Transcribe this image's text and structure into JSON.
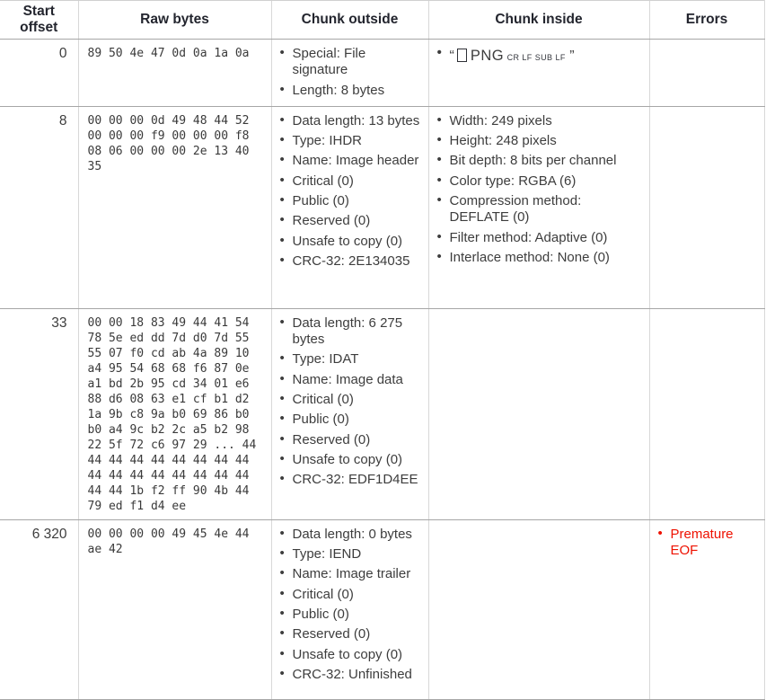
{
  "colors": {
    "error": "#ee1100",
    "header_text": "#23252e",
    "body_text": "#3d3d3d",
    "horizontal_border": "#a6a6a6",
    "vertical_border": "#d8d8d8"
  },
  "table": {
    "headers": [
      "Start offset",
      "Raw bytes",
      "Chunk outside",
      "Chunk inside",
      "Errors"
    ],
    "rows": [
      {
        "offset": "0",
        "raw_bytes": "89 50 4e 47 0d 0a 1a 0a",
        "outside": [
          "Special: File signature",
          "Length: 8 bytes"
        ],
        "inside": [],
        "inside_signature": {
          "open_quote": "“",
          "box_icon": "unprintable-byte-box",
          "text": "PNG",
          "control_chars": [
            "CR",
            "LF",
            "SUB",
            "LF"
          ],
          "close_quote": "”"
        },
        "errors": []
      },
      {
        "offset": "8",
        "raw_bytes": "00 00 00 0d 49 48 44 52\n00 00 00 f9 00 00 00 f8\n08 06 00 00 00 2e 13 40\n35",
        "outside": [
          "Data length: 13 bytes",
          "Type: IHDR",
          "Name: Image header",
          "Critical (0)",
          "Public (0)",
          "Reserved (0)",
          "Unsafe to copy (0)",
          "CRC-32: 2E134035"
        ],
        "inside": [
          "Width: 249 pixels",
          "Height: 248 pixels",
          "Bit depth: 8 bits per channel",
          "Color type: RGBA (6)",
          "Compression method: DEFLATE (0)",
          "Filter method: Adaptive (0)",
          "Interlace method: None (0)"
        ],
        "errors": []
      },
      {
        "offset": "33",
        "raw_bytes": "00 00 18 83 49 44 41 54\n78 5e ed dd 7d d0 7d 55\n55 07 f0 cd ab 4a 89 10\na4 95 54 68 68 f6 87 0e\na1 bd 2b 95 cd 34 01 e6\n88 d6 08 63 e1 cf b1 d2\n1a 9b c8 9a b0 69 86 b0\nb0 a4 9c b2 2c a5 b2 98\n22 5f 72 c6 97 29 ... 44\n44 44 44 44 44 44 44 44\n44 44 44 44 44 44 44 44\n44 44 1b f2 ff 90 4b 44\n79 ed f1 d4 ee",
        "outside": [
          "Data length: 6 275 bytes",
          "Type: IDAT",
          "Name: Image data",
          "Critical (0)",
          "Public (0)",
          "Reserved (0)",
          "Unsafe to copy (0)",
          "CRC-32: EDF1D4EE"
        ],
        "inside": [],
        "errors": []
      },
      {
        "offset": "6 320",
        "raw_bytes": "00 00 00 00 49 45 4e 44\nae 42",
        "outside": [
          "Data length: 0 bytes",
          "Type: IEND",
          "Name: Image trailer",
          "Critical (0)",
          "Public (0)",
          "Reserved (0)",
          "Unsafe to copy (0)",
          "CRC-32: Unfinished"
        ],
        "inside": [],
        "errors": [
          "Premature EOF"
        ]
      }
    ]
  }
}
